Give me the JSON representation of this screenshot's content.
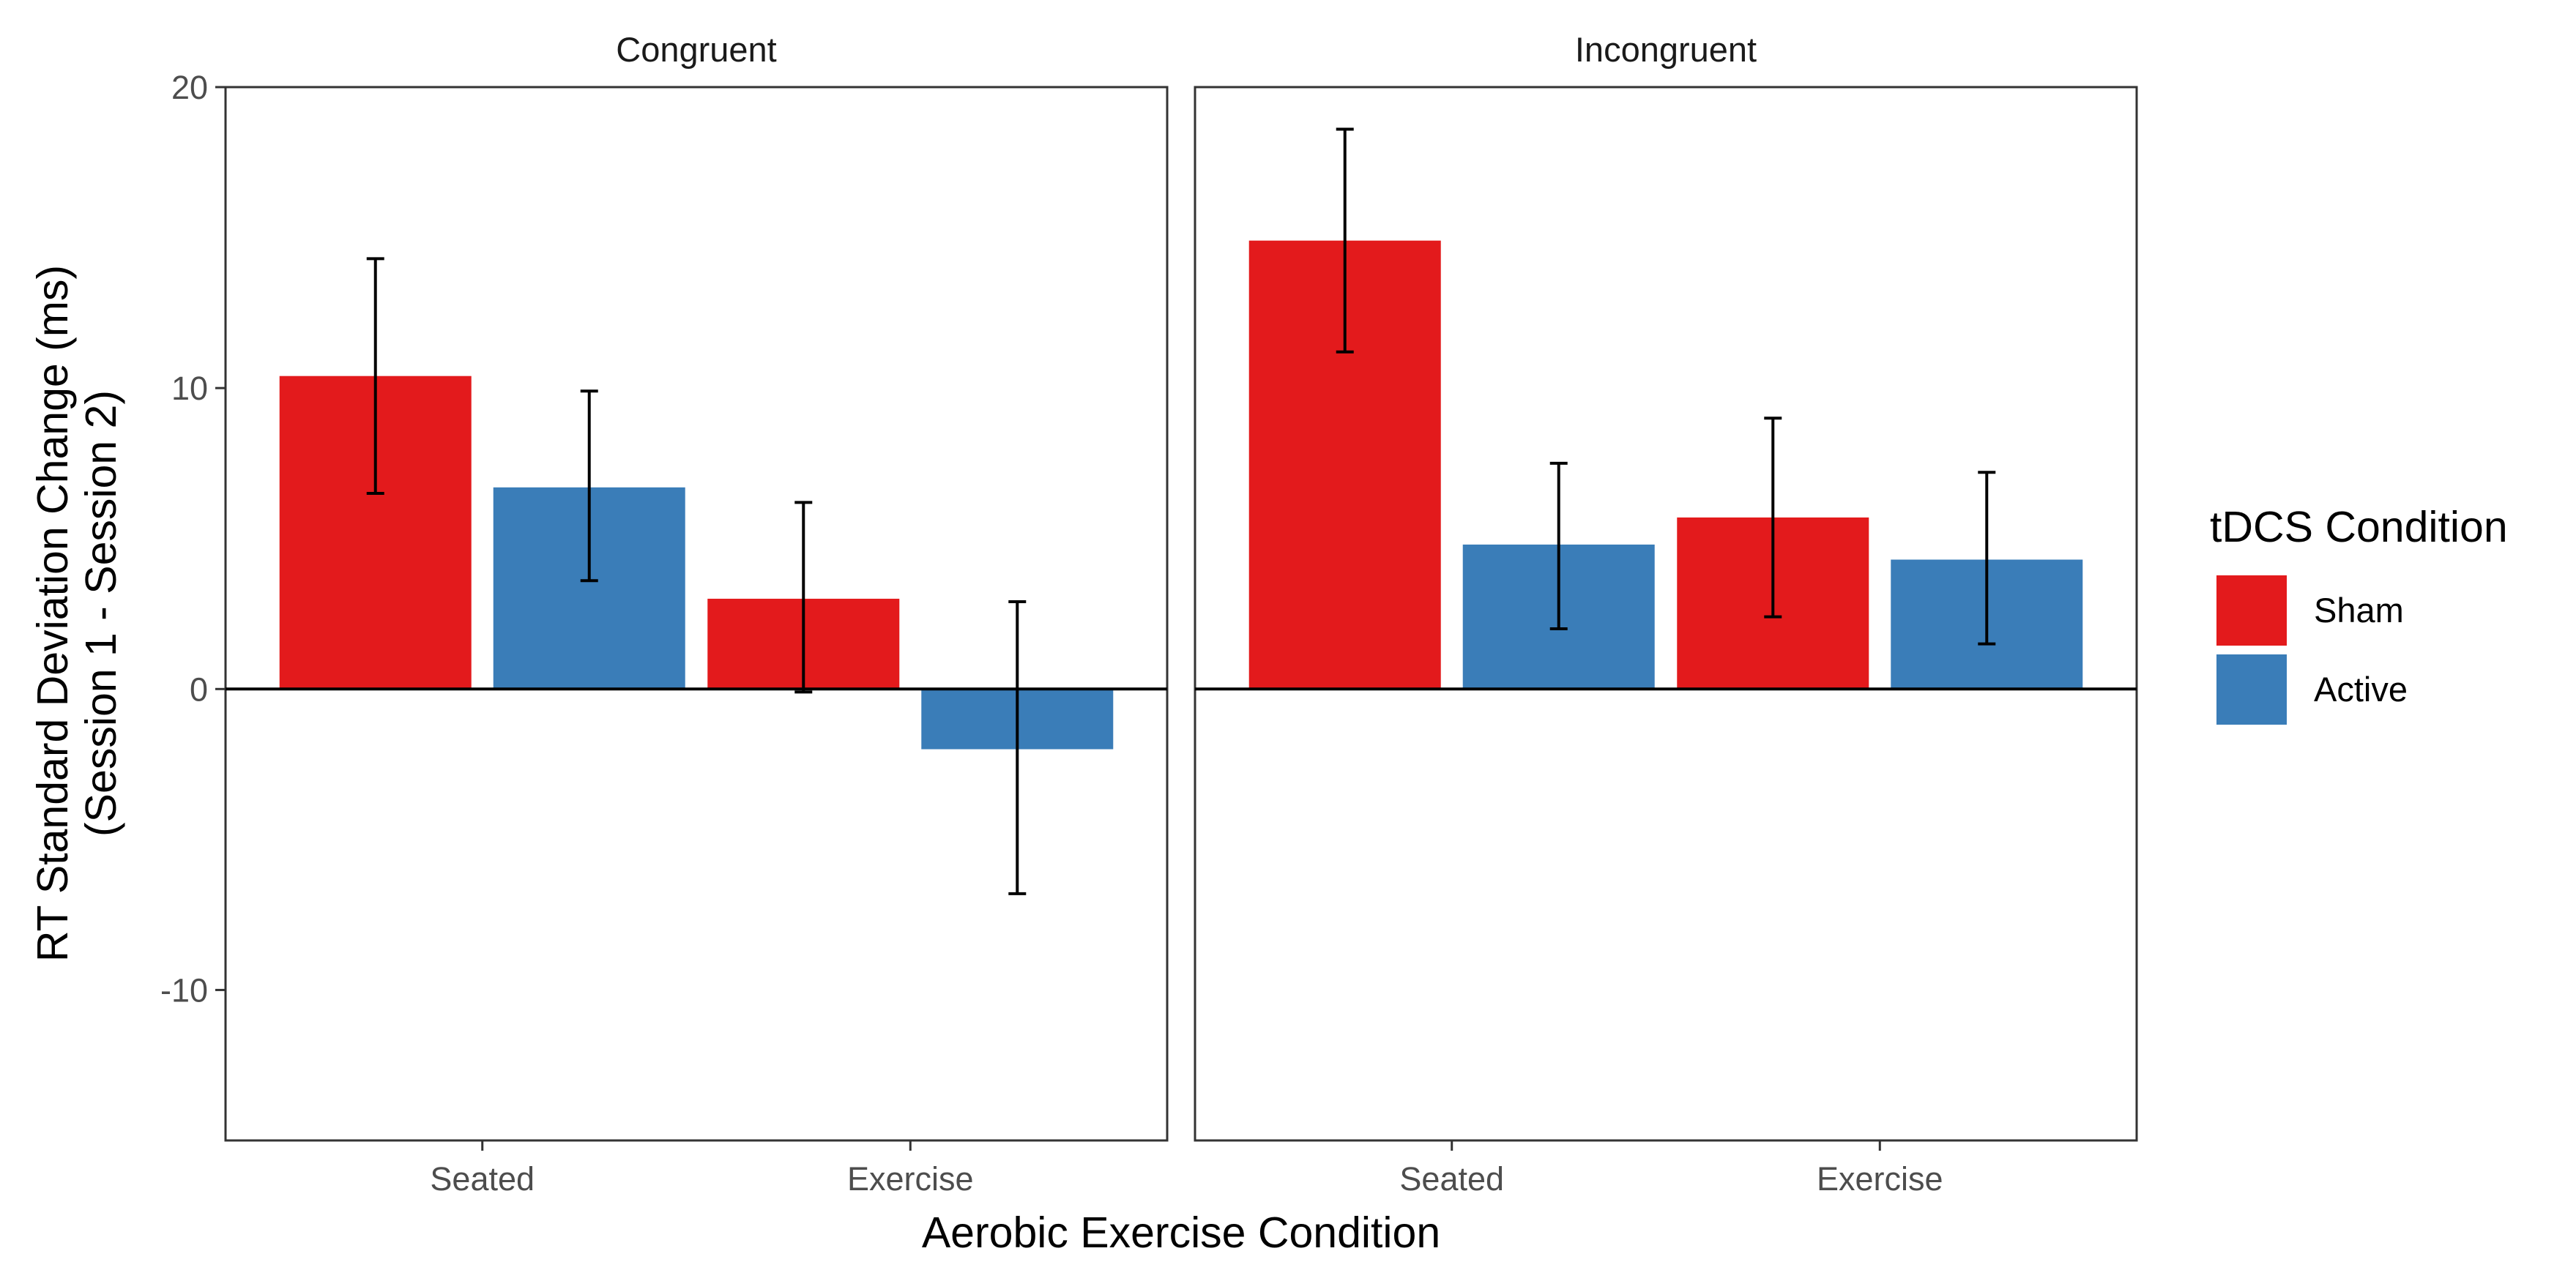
{
  "chart_data": {
    "type": "bar",
    "panels": [
      "Congruent",
      "Incongruent"
    ],
    "categories": [
      "Seated",
      "Exercise"
    ],
    "series": [
      {
        "name": "Sham",
        "color": "#e31a1c"
      },
      {
        "name": "Active",
        "color": "#3a7db8"
      }
    ],
    "data": [
      {
        "panel": "Congruent",
        "category": "Seated",
        "series": "Sham",
        "value": 10.4,
        "error_low": 6.5,
        "error_high": 14.3
      },
      {
        "panel": "Congruent",
        "category": "Seated",
        "series": "Active",
        "value": 6.7,
        "error_low": 3.6,
        "error_high": 9.9
      },
      {
        "panel": "Congruent",
        "category": "Exercise",
        "series": "Sham",
        "value": 3.0,
        "error_low": -0.1,
        "error_high": 6.2
      },
      {
        "panel": "Congruent",
        "category": "Exercise",
        "series": "Active",
        "value": -2.0,
        "error_low": -6.8,
        "error_high": 2.9
      },
      {
        "panel": "Incongruent",
        "category": "Seated",
        "series": "Sham",
        "value": 14.9,
        "error_low": 11.2,
        "error_high": 18.6
      },
      {
        "panel": "Incongruent",
        "category": "Seated",
        "series": "Active",
        "value": 4.8,
        "error_low": 2.0,
        "error_high": 7.5
      },
      {
        "panel": "Incongruent",
        "category": "Exercise",
        "series": "Sham",
        "value": 5.7,
        "error_low": 2.4,
        "error_high": 9.0
      },
      {
        "panel": "Incongruent",
        "category": "Exercise",
        "series": "Active",
        "value": 4.3,
        "error_low": 1.5,
        "error_high": 7.2
      }
    ],
    "ylim": [
      -15,
      20
    ],
    "yticks": [
      20,
      10,
      0,
      -10
    ],
    "ytick_labels": [
      "20",
      "10",
      "0",
      "-10"
    ],
    "xlabel": "Aerobic Exercise Condition",
    "ylabel_lines": [
      "RT Standard Deviation Change (ms)",
      "(Session 1 - Session 2)"
    ],
    "legend_title": "tDCS Condition",
    "legend_position": "right",
    "grid": false
  }
}
